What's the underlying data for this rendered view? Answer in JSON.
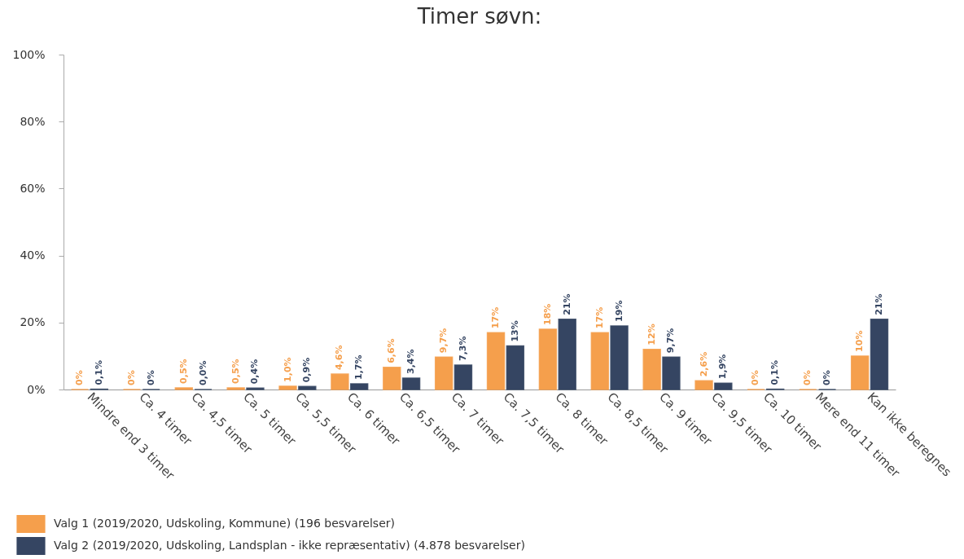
{
  "chart_data": {
    "type": "bar",
    "title": "Timer søvn:",
    "categories": [
      "Mindre end 3 timer",
      "Ca. 4 timer",
      "Ca. 4,5 timer",
      "Ca. 5 timer",
      "Ca. 5,5 timer",
      "Ca. 6 timer",
      "Ca. 6,5 timer",
      "Ca. 7 timer",
      "Ca. 7,5 timer",
      "Ca. 8 timer",
      "Ca. 8,5 timer",
      "Ca. 9 timer",
      "Ca. 9,5 timer",
      "Ca. 10 timer",
      "Mere end 11 timer",
      "Kan ikke beregnes"
    ],
    "series": [
      {
        "name": "Valg 1 (2019/2020, Udskoling, Kommune) (196 besvarelser)",
        "color": "#f59f4c",
        "values": [
          0,
          0,
          0.5,
          0.5,
          1.0,
          4.6,
          6.6,
          9.7,
          17,
          18,
          17,
          12,
          2.6,
          0,
          0,
          10
        ],
        "value_labels": [
          "0%",
          "0%",
          "0,5%",
          "0,5%",
          "1,0%",
          "4,6%",
          "6,6%",
          "9,7%",
          "17%",
          "18%",
          "17%",
          "12%",
          "2,6%",
          "0%",
          "0%",
          "10%"
        ]
      },
      {
        "name": "Valg 2 (2019/2020, Udskoling, Landsplan - ikke repræsentativ) (4.878 besvarelser)",
        "color": "#354562",
        "values": [
          0.1,
          0,
          0.0,
          0.4,
          0.9,
          1.7,
          3.4,
          7.3,
          13,
          21,
          19,
          9.7,
          1.9,
          0.1,
          0,
          21
        ],
        "value_labels": [
          "0,1%",
          "0%",
          "0,0%",
          "0,4%",
          "0,9%",
          "1,7%",
          "3,4%",
          "7,3%",
          "13%",
          "21%",
          "19%",
          "9,7%",
          "1,9%",
          "0,1%",
          "0%",
          "21%"
        ]
      }
    ],
    "ylim": [
      0,
      100
    ],
    "yticks": [
      {
        "value": 0,
        "label": "0%"
      },
      {
        "value": 20,
        "label": "20%"
      },
      {
        "value": 40,
        "label": "40%"
      },
      {
        "value": 60,
        "label": "60%"
      },
      {
        "value": 80,
        "label": "80%"
      },
      {
        "value": 100,
        "label": "100%"
      }
    ],
    "legend": "bottom"
  }
}
